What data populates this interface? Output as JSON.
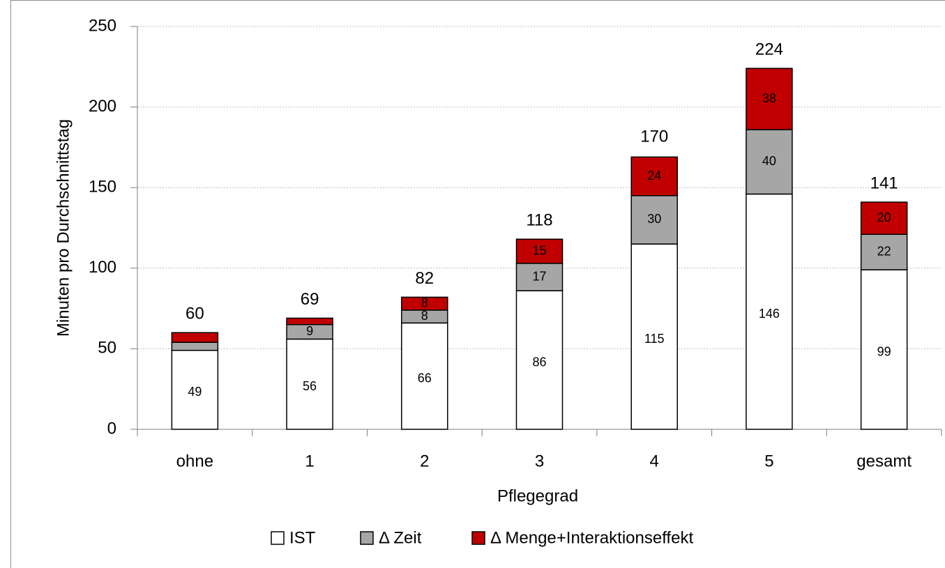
{
  "chart_data": {
    "type": "stacked_bar",
    "x_label": "Pflegegrad",
    "y_label": "Minuten pro Durchschnittstag",
    "categories": [
      "ohne",
      "1",
      "2",
      "3",
      "4",
      "5",
      "gesamt"
    ],
    "series": [
      {
        "name": "IST",
        "color": "#ffffff",
        "values": [
          49,
          56,
          66,
          86,
          115,
          146,
          99
        ],
        "value_labels": [
          "49",
          "56",
          "66",
          "86",
          "115",
          "146",
          "99"
        ]
      },
      {
        "name": "Δ Zeit",
        "color": "#a6a6a6",
        "values": [
          5,
          9,
          8,
          17,
          30,
          40,
          22
        ],
        "value_labels": [
          null,
          "9",
          "8",
          "17",
          "30",
          "40",
          "22"
        ]
      },
      {
        "name": "Δ Menge+Interaktionseffekt",
        "color": "#c00000",
        "values": [
          6,
          4,
          8,
          15,
          24,
          38,
          20
        ],
        "value_labels": [
          null,
          null,
          "8",
          "15",
          "24",
          "38",
          "20"
        ]
      }
    ],
    "totals": [
      60,
      69,
      82,
      118,
      170,
      224,
      141
    ],
    "ylim": [
      0,
      250
    ],
    "yticks": [
      0,
      50,
      100,
      150,
      200,
      250
    ],
    "grid": true,
    "legend": "bottom"
  }
}
